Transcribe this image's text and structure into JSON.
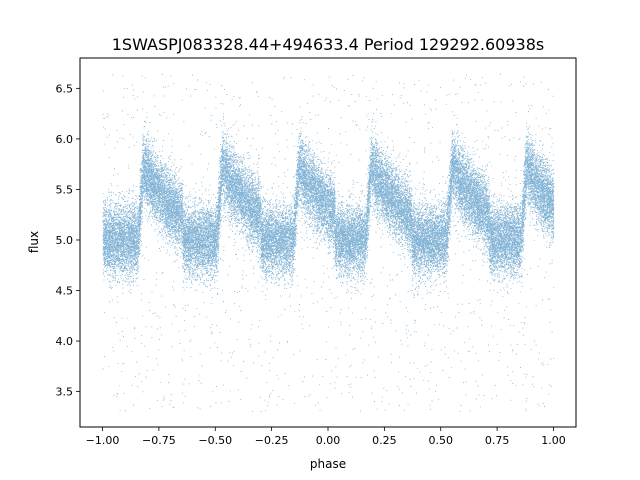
{
  "chart_data": {
    "type": "scatter",
    "title": "1SWASPJ083328.44+494633.4 Period 129292.60938s",
    "xlabel": "phase",
    "ylabel": "flux",
    "xlim": [
      -1.1,
      1.1
    ],
    "ylim": [
      3.15,
      6.8
    ],
    "xticks": [
      "−1.00",
      "−0.75",
      "−0.50",
      "−0.25",
      "0.00",
      "0.25",
      "0.50",
      "0.75",
      "1.00"
    ],
    "xtick_values": [
      -1.0,
      -0.75,
      -0.5,
      -0.25,
      0.0,
      0.25,
      0.5,
      0.75,
      1.0
    ],
    "yticks": [
      "3.5",
      "4.0",
      "4.5",
      "5.0",
      "5.5",
      "6.0",
      "6.5"
    ],
    "ytick_values": [
      3.5,
      4.0,
      4.5,
      5.0,
      5.5,
      6.0,
      6.5
    ],
    "grid": false,
    "marker_color": "#1f77b4",
    "series": [
      {
        "phase_range": [
          -1.0,
          1.0
        ],
        "flux_baseline": 5.0,
        "flux_peak": 5.75,
        "flux_scatter_min": 3.3,
        "flux_scatter_max": 6.65,
        "cycles_in_range": 6,
        "peak_phases": [
          -0.82,
          -0.47,
          -0.13,
          0.19,
          0.55,
          0.88
        ],
        "point_count": 40000
      }
    ]
  }
}
